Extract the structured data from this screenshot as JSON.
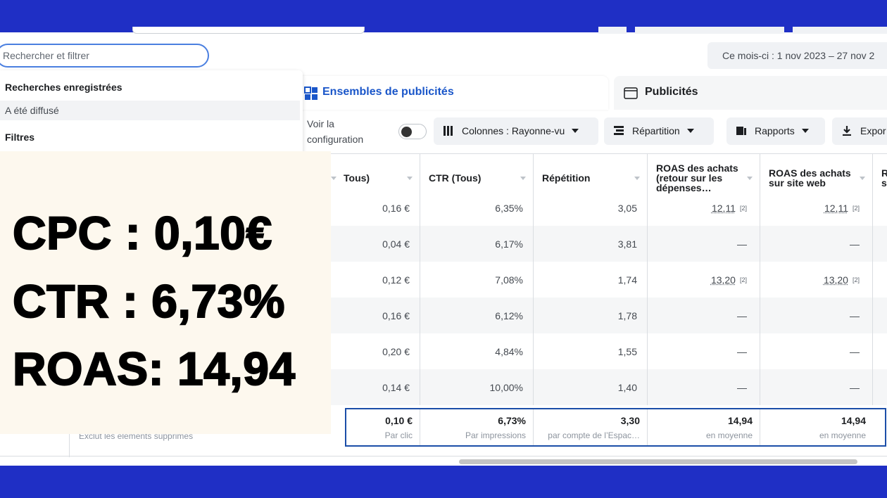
{
  "header": {
    "search_placeholder": "Rechercher et filtrer",
    "date_range": "Ce mois-ci : 1 nov 2023 – 27 nov 2"
  },
  "dropdown": {
    "title": "Recherches enregistrées",
    "item": "A été diffusé",
    "filters": "Filtres"
  },
  "tabs": [
    "Ensembles de publicités",
    "Publicités"
  ],
  "toolbar": {
    "config_label": "Voir la configuration",
    "buttons": [
      "Colonnes : Rayonne-vu",
      "Répartition",
      "Rapports",
      "Expor"
    ]
  },
  "table": {
    "columns": [
      "Tous)",
      "CTR (Tous)",
      "Répétition",
      "ROAS des achats (retour sur les dépenses…",
      "ROAS des achats sur site web",
      "R s"
    ],
    "rows": [
      [
        "0,16 €",
        "6,35%",
        "3,05",
        {
          "value": "12,11",
          "note": "[2]"
        },
        {
          "value": "12,11",
          "note": "[2]"
        }
      ],
      [
        "0,04 €",
        "6,17%",
        "3,81",
        "—",
        "—"
      ],
      [
        "0,12 €",
        "7,08%",
        "1,74",
        {
          "value": "13,20",
          "note": "[2]"
        },
        {
          "value": "13,20",
          "note": "[2]"
        }
      ],
      [
        "0,16 €",
        "6,12%",
        "1,78",
        "—",
        "—"
      ],
      [
        "0,20 €",
        "4,84%",
        "1,55",
        "—",
        "—"
      ],
      [
        "0,14 €",
        "10,00%",
        "1,40",
        "—",
        "—"
      ]
    ],
    "summary": [
      {
        "value": "0,10 €",
        "label": "Par clic"
      },
      {
        "value": "6,73%",
        "label": "Par impressions"
      },
      {
        "value": "3,30",
        "label": "par compte de l’Espac…"
      },
      {
        "value": "14,94",
        "label": "en moyenne"
      },
      {
        "value": "14,94",
        "label": "en moyenne"
      }
    ],
    "summary_note": "Exclut les éléments supprimés"
  },
  "overlay": [
    "CPC : 0,10€",
    "CTR : 6,73%",
    "ROAS: 14,94"
  ]
}
